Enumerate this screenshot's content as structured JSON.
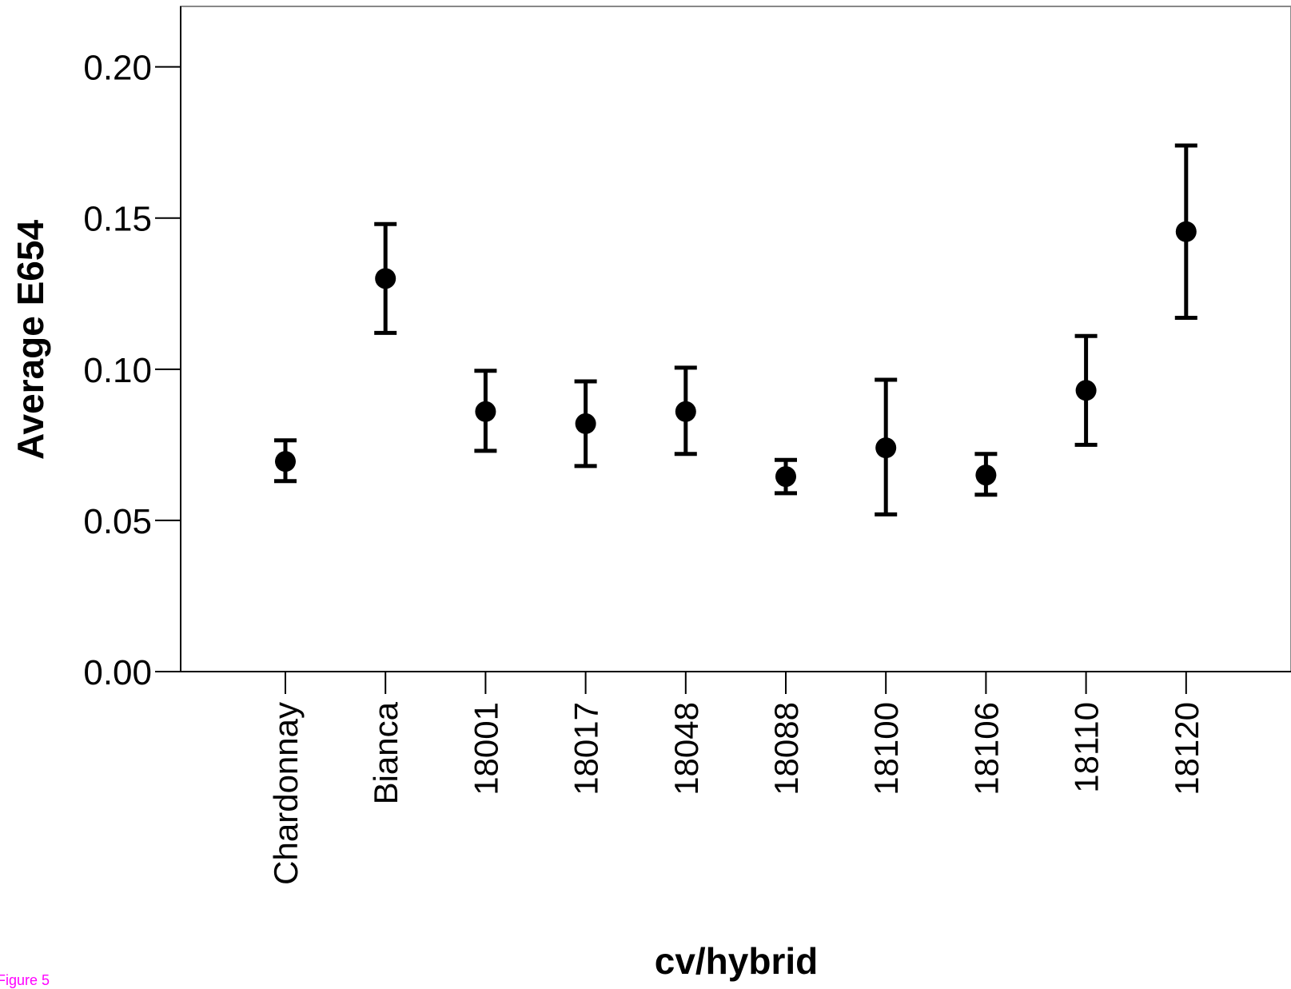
{
  "figure_label": "Figure 5",
  "chart_data": {
    "type": "scatter",
    "title": "",
    "xlabel": "cv/hybrid",
    "ylabel": "Average E654",
    "ylim": [
      0,
      0.22
    ],
    "yticks": [
      "0.00",
      "0.05",
      "0.10",
      "0.15",
      "0.20"
    ],
    "grid": false,
    "legend": "none",
    "categories": [
      "Chardonnay",
      "Bianca",
      "18001",
      "18017",
      "18048",
      "18088",
      "18100",
      "18106",
      "18110",
      "18120"
    ],
    "series": [
      {
        "marker_color": "#000000",
        "values": [
          0.0695,
          0.13,
          0.086,
          0.082,
          0.086,
          0.0645,
          0.074,
          0.065,
          0.093,
          0.1455
        ],
        "error_low": [
          0.063,
          0.112,
          0.073,
          0.068,
          0.072,
          0.059,
          0.052,
          0.0585,
          0.075,
          0.117
        ],
        "error_high": [
          0.0765,
          0.148,
          0.0995,
          0.096,
          0.1005,
          0.07,
          0.0965,
          0.072,
          0.111,
          0.174
        ]
      }
    ]
  }
}
